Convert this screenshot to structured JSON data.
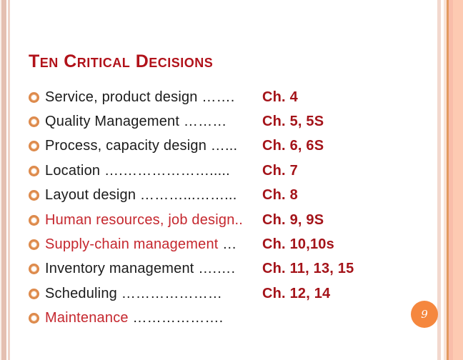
{
  "slide": {
    "title": "Ten Critical Decisions",
    "page_number": "9"
  },
  "decisions": {
    "items": [
      {
        "label": "Service, product design ",
        "dots": "…….",
        "chapter": "Ch. 4"
      },
      {
        "label": "Quality Management ",
        "dots": "………",
        "chapter": "Ch. 5, 5S"
      },
      {
        "label": "Process, capacity design ",
        "dots": "…...",
        "chapter": "Ch. 6, 6S"
      },
      {
        "label": "Location ",
        "dots": "….……………….....",
        "chapter": "Ch. 7"
      },
      {
        "label": "Layout design ",
        "dots": "………...……...",
        "chapter": "Ch. 8"
      },
      {
        "label": "Human resources, job design",
        "dots": "..",
        "chapter": "Ch. 9, 9S"
      },
      {
        "label": "Supply-chain management ",
        "dots": "…",
        "chapter": "Ch. 10,10s"
      },
      {
        "label": "Inventory management ",
        "dots": "….….",
        "chapter": "Ch. 11, 13, 15"
      },
      {
        "label": "Scheduling ",
        "dots": "…………………",
        "chapter": "Ch. 12, 14"
      },
      {
        "label": "Maintenance ",
        "dots": "……………….",
        "chapter": ""
      }
    ]
  },
  "icons": {
    "bullet": "ring-bullet-icon"
  },
  "colors": {
    "title_red": "#b1121a",
    "chapter_red": "#a41319",
    "item_red": "#c5272e",
    "text_black": "#1b1b1b",
    "bullet_orange": "#dd8a4c",
    "page_badge_orange": "#f5873e",
    "frame_pink": "#e4bfb1",
    "frame_light_pink": "#f2d8ce",
    "frame_orange_line": "#e29a60",
    "frame_peach": "#fdcab2"
  }
}
